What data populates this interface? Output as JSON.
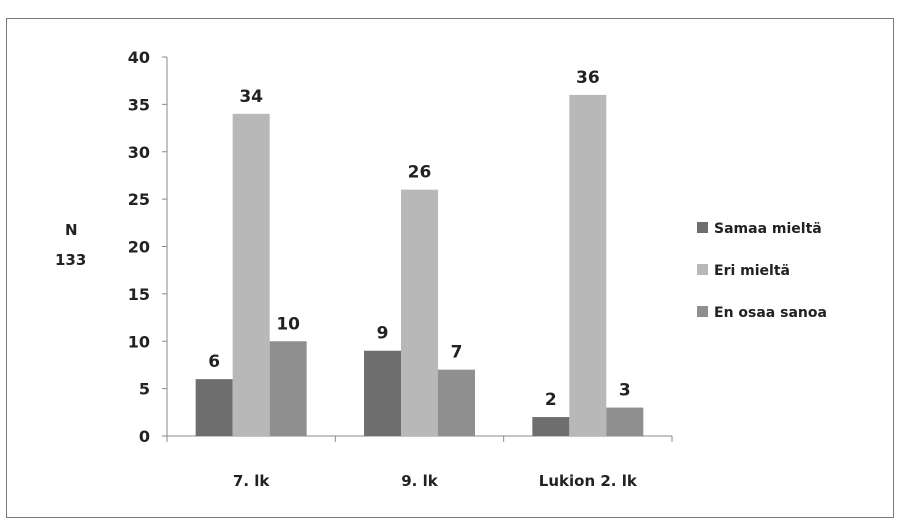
{
  "chart_data": {
    "type": "bar",
    "categories": [
      "7. lk",
      "9. lk",
      "Lukion 2. lk"
    ],
    "series": [
      {
        "name": "Samaa mieltä",
        "values": [
          6,
          9,
          2
        ],
        "color": "#6e6e6e"
      },
      {
        "name": "Eri mieltä",
        "values": [
          34,
          26,
          36
        ],
        "color": "#b8b8b8"
      },
      {
        "name": "En osaa sanoa",
        "values": [
          10,
          7,
          3
        ],
        "color": "#8f8f8f"
      }
    ],
    "ylabel_lines": [
      "N",
      "133"
    ],
    "ylim": [
      0,
      40
    ],
    "yticks": [
      0,
      5,
      10,
      15,
      20,
      25,
      30,
      35,
      40
    ],
    "grid": false,
    "legend": "right"
  }
}
